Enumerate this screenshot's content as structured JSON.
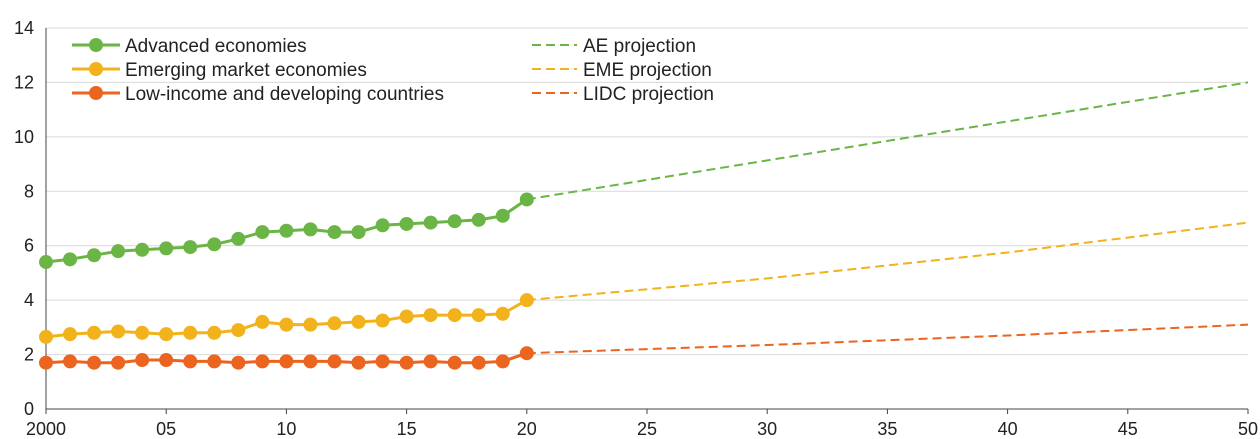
{
  "chart_data": {
    "type": "line",
    "x_tick_labels": [
      "2000",
      "05",
      "10",
      "15",
      "20",
      "25",
      "30",
      "35",
      "40",
      "45",
      "50"
    ],
    "x_ticks": [
      2000,
      2005,
      2010,
      2015,
      2020,
      2025,
      2030,
      2035,
      2040,
      2045,
      2050
    ],
    "y_ticks": [
      0,
      2,
      4,
      6,
      8,
      10,
      12,
      14
    ],
    "xlim": [
      2000,
      2050
    ],
    "ylim": [
      0,
      14
    ],
    "grid": "horizontal",
    "legend_position": "top-left",
    "series": [
      {
        "name": "Advanced economies",
        "color": "#6ab545",
        "style": "solid-markers",
        "x": [
          2000,
          2001,
          2002,
          2003,
          2004,
          2005,
          2006,
          2007,
          2008,
          2009,
          2010,
          2011,
          2012,
          2013,
          2014,
          2015,
          2016,
          2017,
          2018,
          2019,
          2020
        ],
        "values": [
          5.4,
          5.5,
          5.65,
          5.8,
          5.85,
          5.9,
          5.95,
          6.05,
          6.25,
          6.5,
          6.55,
          6.6,
          6.5,
          6.5,
          6.75,
          6.8,
          6.85,
          6.9,
          6.95,
          7.1,
          7.7
        ]
      },
      {
        "name": "Emerging market economies",
        "color": "#f2b21b",
        "style": "solid-markers",
        "x": [
          2000,
          2001,
          2002,
          2003,
          2004,
          2005,
          2006,
          2007,
          2008,
          2009,
          2010,
          2011,
          2012,
          2013,
          2014,
          2015,
          2016,
          2017,
          2018,
          2019,
          2020
        ],
        "values": [
          2.65,
          2.75,
          2.8,
          2.85,
          2.8,
          2.75,
          2.8,
          2.8,
          2.9,
          3.2,
          3.1,
          3.1,
          3.15,
          3.2,
          3.25,
          3.4,
          3.45,
          3.45,
          3.45,
          3.5,
          4.0
        ]
      },
      {
        "name": "Low-income and developing countries",
        "color": "#eb6420",
        "style": "solid-markers",
        "x": [
          2000,
          2001,
          2002,
          2003,
          2004,
          2005,
          2006,
          2007,
          2008,
          2009,
          2010,
          2011,
          2012,
          2013,
          2014,
          2015,
          2016,
          2017,
          2018,
          2019,
          2020
        ],
        "values": [
          1.7,
          1.75,
          1.7,
          1.7,
          1.8,
          1.8,
          1.75,
          1.75,
          1.7,
          1.75,
          1.75,
          1.75,
          1.75,
          1.7,
          1.75,
          1.7,
          1.75,
          1.7,
          1.7,
          1.75,
          2.05
        ]
      },
      {
        "name": "AE projection",
        "color": "#6ab545",
        "style": "dashed",
        "x": [
          2020,
          2050
        ],
        "values": [
          7.7,
          12.0
        ]
      },
      {
        "name": "EME projection",
        "color": "#f2b21b",
        "style": "dashed",
        "x": [
          2020,
          2030,
          2040,
          2050
        ],
        "values": [
          4.0,
          4.8,
          5.75,
          6.85
        ]
      },
      {
        "name": "LIDC projection",
        "color": "#eb6420",
        "style": "dashed",
        "x": [
          2020,
          2030,
          2040,
          2050
        ],
        "values": [
          2.05,
          2.35,
          2.7,
          3.1
        ]
      }
    ]
  }
}
